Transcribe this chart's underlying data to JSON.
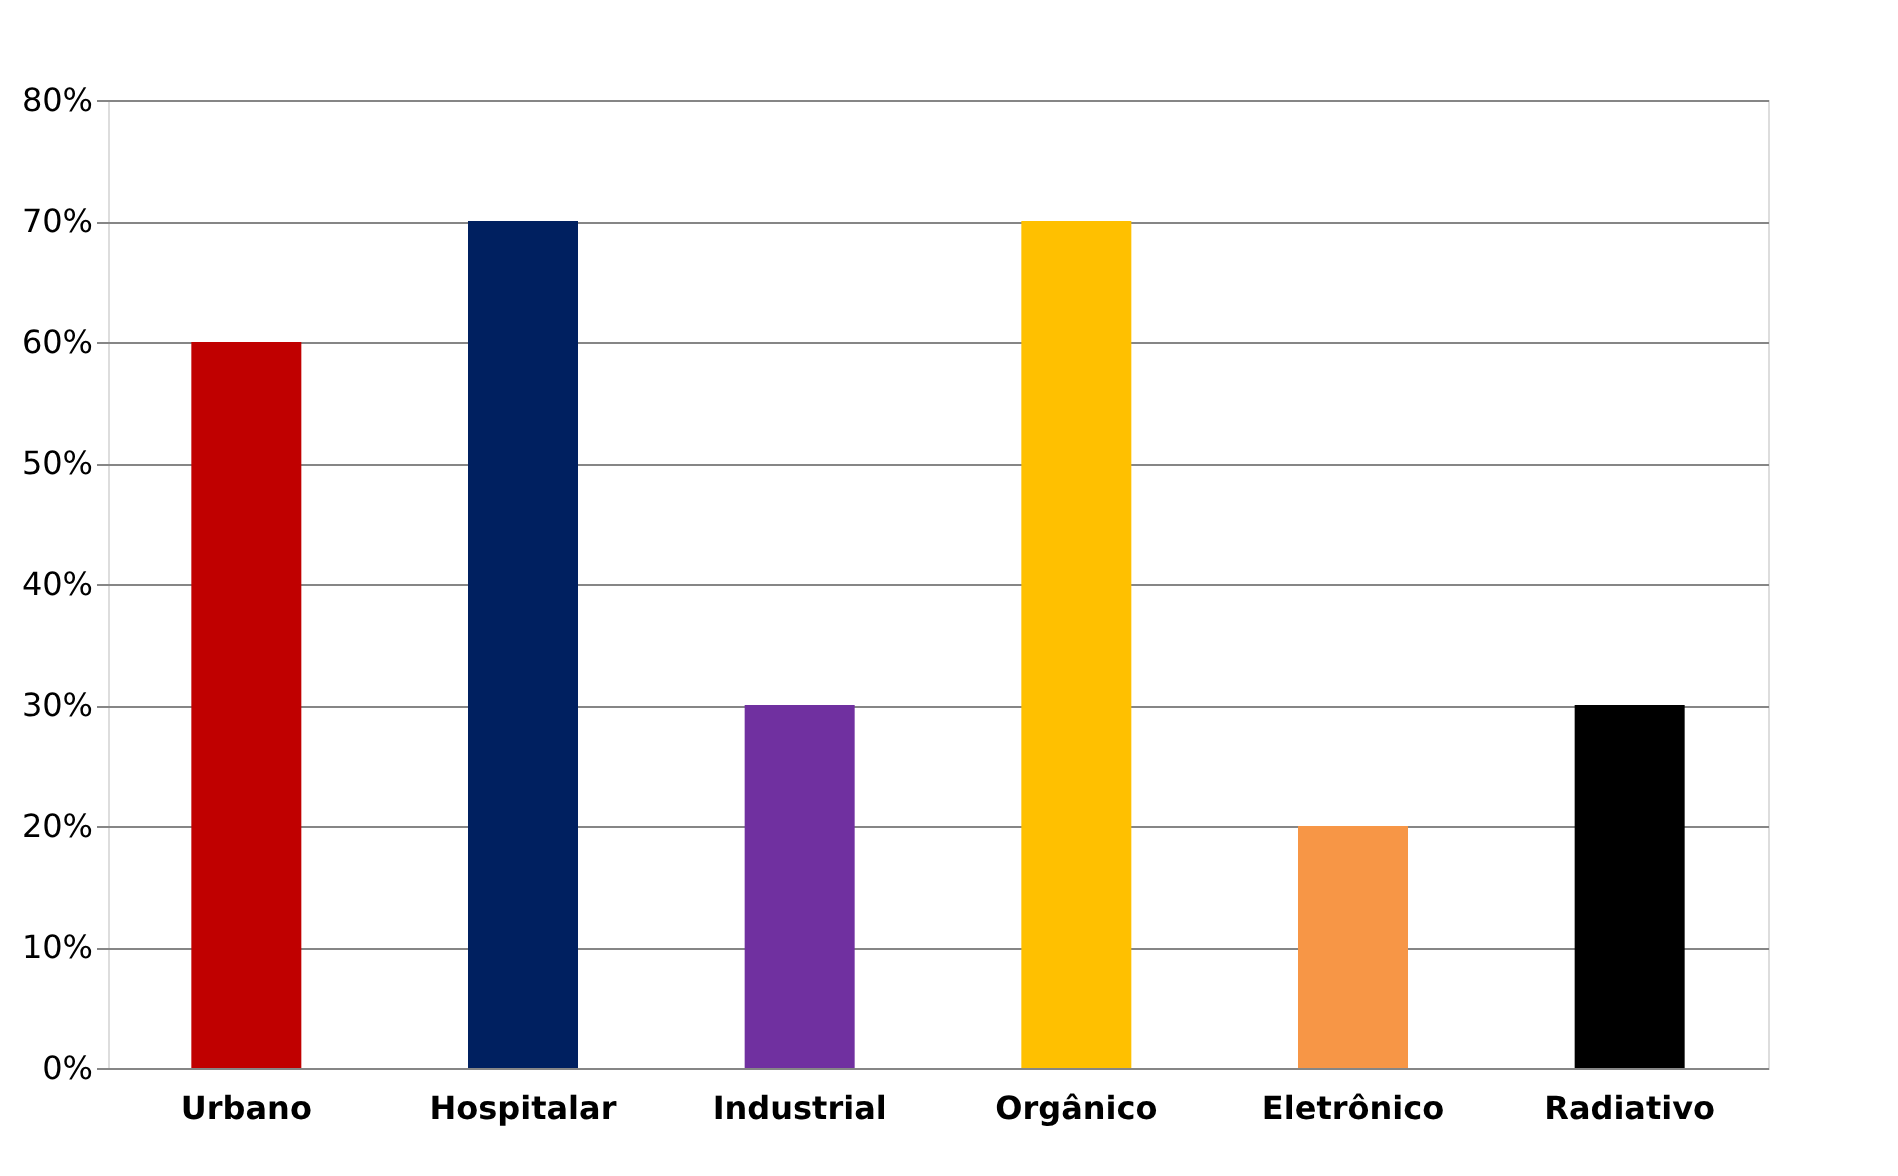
{
  "chart_data": {
    "type": "bar",
    "categories": [
      "Urbano",
      "Hospitalar",
      "Industrial",
      "Orgânico",
      "Eletrônico",
      "Radiativo"
    ],
    "values": [
      60,
      70,
      30,
      70,
      20,
      30
    ],
    "colors": [
      "#c00000",
      "#002060",
      "#7030a0",
      "#ffc000",
      "#f79646",
      "#000000"
    ],
    "ylim": [
      0,
      80
    ],
    "yticks": [
      {
        "value": 0,
        "label": "0%"
      },
      {
        "value": 10,
        "label": "10%"
      },
      {
        "value": 20,
        "label": "20%"
      },
      {
        "value": 30,
        "label": "30%"
      },
      {
        "value": 40,
        "label": "40%"
      },
      {
        "value": 50,
        "label": "50%"
      },
      {
        "value": 60,
        "label": "60%"
      },
      {
        "value": 70,
        "label": "70%"
      },
      {
        "value": 80,
        "label": "80%"
      }
    ],
    "grid": "y",
    "legend": false
  }
}
